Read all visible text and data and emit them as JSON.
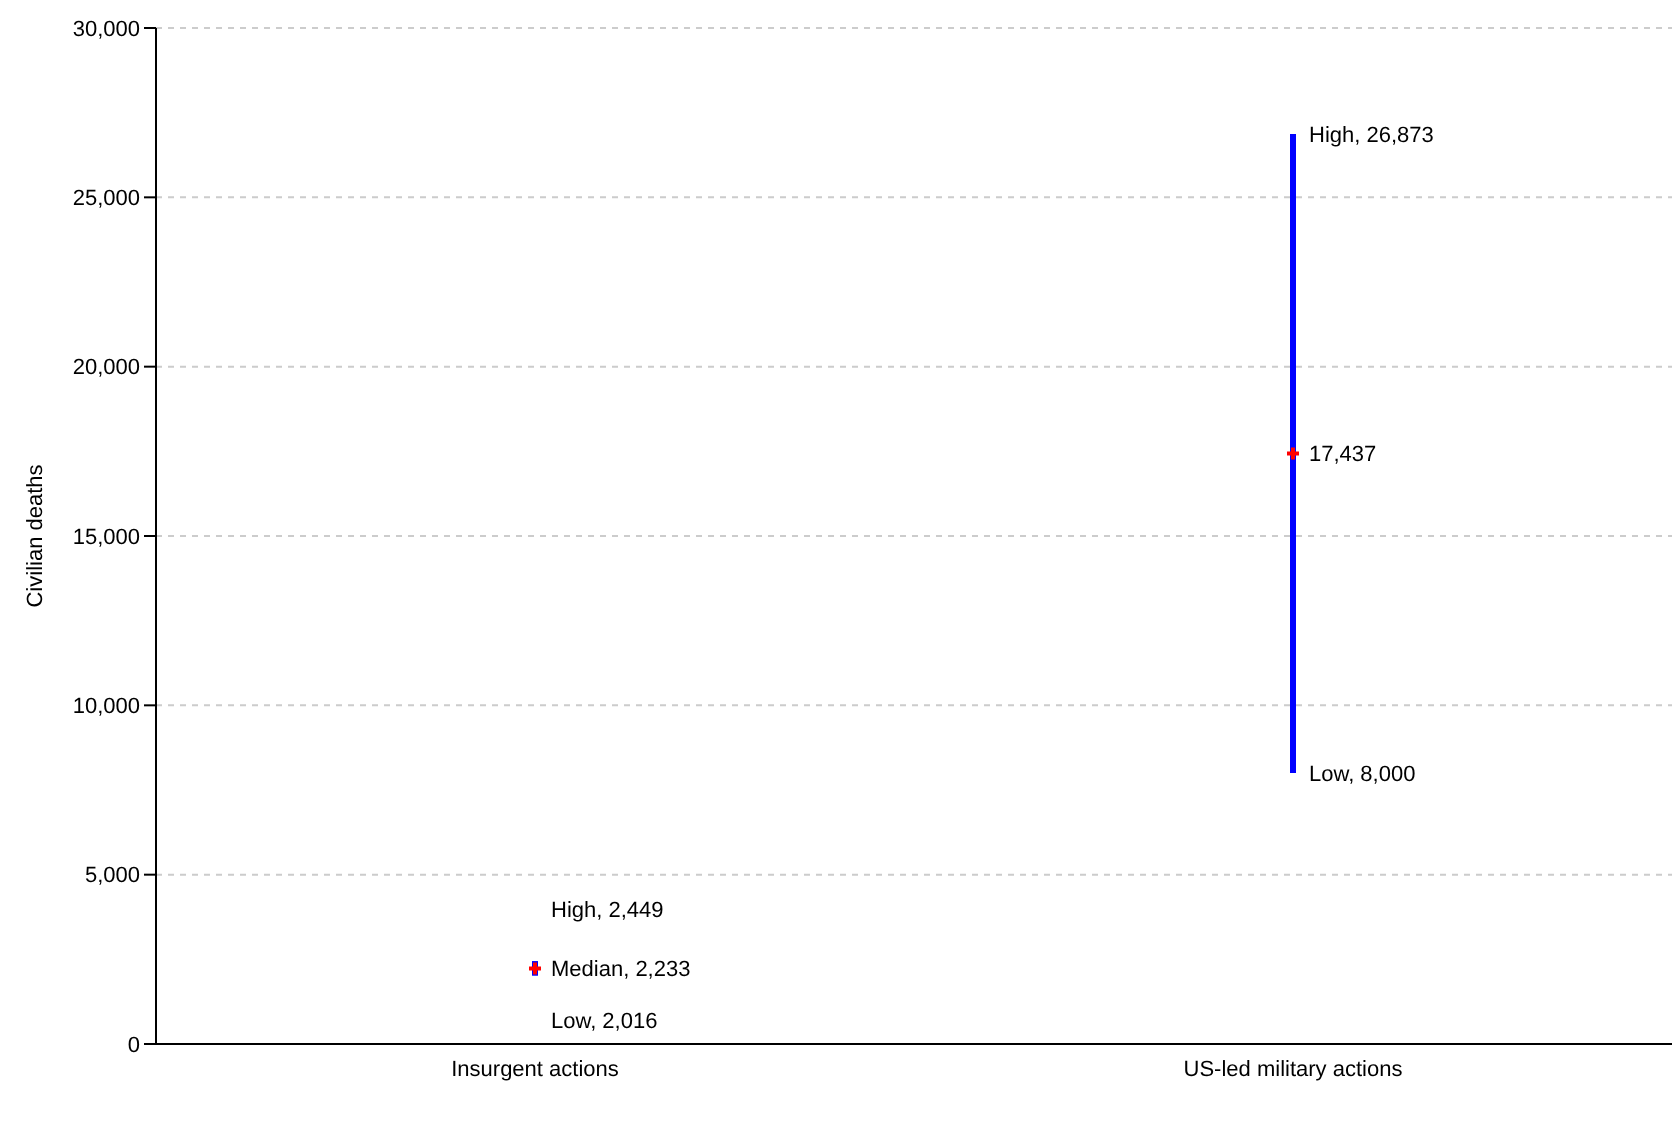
{
  "chart_data": {
    "type": "bar",
    "ylabel": "Civilian deaths",
    "categories": [
      "Insurgent actions",
      "US-led military actions"
    ],
    "series": [
      {
        "color": "#0000ff",
        "base": [
          2016,
          8000
        ],
        "values": [
          433,
          18873
        ]
      },
      {
        "type": "scatter",
        "color": "#ff0000",
        "x": [
          "Insurgent actions",
          "US-led military actions"
        ],
        "values": [
          2233,
          17437
        ],
        "marker": "cross"
      }
    ],
    "annotations": [
      {
        "text": "High, 2,449",
        "x": "Insurgent actions",
        "y": 2449
      },
      {
        "text": "Median, 2,233",
        "x": "Insurgent actions",
        "y": 2233
      },
      {
        "text": "Low, 2,016",
        "x": "Insurgent actions",
        "y": 2016
      },
      {
        "text": "High, 26,873",
        "x": "US-led military actions",
        "y": 26873
      },
      {
        "text": "17,437",
        "x": "US-led military actions",
        "y": 17437
      },
      {
        "text": "Low, 8,000",
        "x": "US-led military actions",
        "y": 8000
      }
    ],
    "ylim": [
      0,
      30000
    ],
    "yticks": [
      0,
      {
        "value": 5000,
        "label": "5,000"
      },
      {
        "value": 10000,
        "label": "10,000"
      },
      {
        "value": 15000,
        "label": "15,000"
      },
      {
        "value": 20000,
        "label": "20,000"
      },
      {
        "value": 25000,
        "label": "25,000"
      },
      {
        "value": 30000,
        "label": "30,000"
      }
    ],
    "grid": "y",
    "legend": false
  }
}
